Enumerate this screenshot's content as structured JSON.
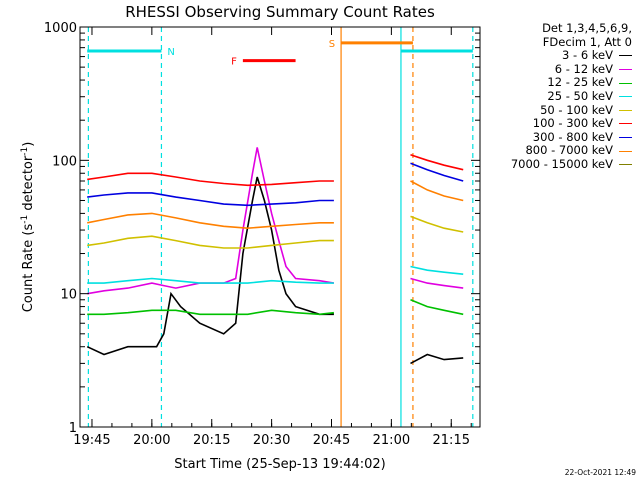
{
  "chart_data": {
    "type": "line",
    "title": "RHESSI Observing Summary Count Rates",
    "xlabel": "Start Time (25-Sep-13 19:44:02)",
    "ylabel_main": "Count Rate (s",
    "ylabel_sup1": "-1",
    "ylabel_mid": " detector",
    "ylabel_sup2": "-1",
    "ylabel_end": ")",
    "yscale": "log",
    "ylim": [
      1,
      1000
    ],
    "xlim_minutes": [
      19.7,
      21.37
    ],
    "y_ticks": [
      {
        "value": 1,
        "label": "1"
      },
      {
        "value": 10,
        "label": "10"
      },
      {
        "value": 100,
        "label": "100"
      },
      {
        "value": 1000,
        "label": "1000"
      }
    ],
    "x_ticks": [
      {
        "value": 19.75,
        "label": "19:45"
      },
      {
        "value": 20.0,
        "label": "20:00"
      },
      {
        "value": 20.25,
        "label": "20:15"
      },
      {
        "value": 20.5,
        "label": "20:30"
      },
      {
        "value": 20.75,
        "label": "20:45"
      },
      {
        "value": 21.0,
        "label": "21:00"
      },
      {
        "value": 21.25,
        "label": "21:15"
      }
    ],
    "legend_header": [
      "Det 1,3,4,5,6,9,",
      "FDecim 1, Att 0"
    ],
    "series": [
      {
        "name": "3 - 6 keV",
        "color": "#000000",
        "points": [
          [
            19.73,
            4
          ],
          [
            19.8,
            3.5
          ],
          [
            19.9,
            4
          ],
          [
            20.02,
            4
          ],
          [
            20.05,
            5
          ],
          [
            20.08,
            10
          ],
          [
            20.12,
            8
          ],
          [
            20.2,
            6
          ],
          [
            20.3,
            5
          ],
          [
            20.35,
            6
          ],
          [
            20.38,
            20
          ],
          [
            20.42,
            50
          ],
          [
            20.44,
            75
          ],
          [
            20.47,
            50
          ],
          [
            20.5,
            30
          ],
          [
            20.53,
            15
          ],
          [
            20.56,
            10
          ],
          [
            20.6,
            8
          ],
          [
            20.7,
            7
          ],
          [
            20.76,
            7
          ]
        ]
      },
      {
        "name": "6 - 12 keV",
        "color": "#e000e0",
        "points": [
          [
            19.73,
            10
          ],
          [
            19.8,
            10.5
          ],
          [
            19.9,
            11
          ],
          [
            20.0,
            12
          ],
          [
            20.05,
            11.5
          ],
          [
            20.1,
            11
          ],
          [
            20.2,
            12
          ],
          [
            20.3,
            12
          ],
          [
            20.35,
            13
          ],
          [
            20.38,
            30
          ],
          [
            20.42,
            80
          ],
          [
            20.44,
            125
          ],
          [
            20.47,
            70
          ],
          [
            20.5,
            40
          ],
          [
            20.53,
            25
          ],
          [
            20.56,
            16
          ],
          [
            20.6,
            13
          ],
          [
            20.7,
            12.5
          ],
          [
            20.76,
            12
          ]
        ]
      },
      {
        "name": "12 - 25 keV",
        "color": "#00c000",
        "points": [
          [
            19.73,
            7
          ],
          [
            19.8,
            7
          ],
          [
            19.9,
            7.2
          ],
          [
            20.0,
            7.5
          ],
          [
            20.1,
            7.5
          ],
          [
            20.2,
            7
          ],
          [
            20.3,
            7
          ],
          [
            20.4,
            7
          ],
          [
            20.5,
            7.5
          ],
          [
            20.6,
            7.2
          ],
          [
            20.7,
            7
          ],
          [
            20.76,
            7.2
          ]
        ]
      },
      {
        "name": "25 - 50 keV",
        "color": "#00e0e0",
        "points": [
          [
            19.73,
            12
          ],
          [
            19.8,
            12
          ],
          [
            19.9,
            12.5
          ],
          [
            20.0,
            13
          ],
          [
            20.1,
            12.5
          ],
          [
            20.2,
            12
          ],
          [
            20.3,
            12
          ],
          [
            20.4,
            12
          ],
          [
            20.5,
            12.5
          ],
          [
            20.6,
            12.2
          ],
          [
            20.7,
            12
          ],
          [
            20.76,
            12
          ]
        ]
      },
      {
        "name": "50 - 100 keV",
        "color": "#d0c000",
        "points": [
          [
            19.73,
            23
          ],
          [
            19.8,
            24
          ],
          [
            19.9,
            26
          ],
          [
            20.0,
            27
          ],
          [
            20.1,
            25
          ],
          [
            20.2,
            23
          ],
          [
            20.3,
            22
          ],
          [
            20.4,
            22
          ],
          [
            20.5,
            23
          ],
          [
            20.6,
            24
          ],
          [
            20.7,
            25
          ],
          [
            20.76,
            25
          ]
        ]
      },
      {
        "name": "100 - 300 keV",
        "color": "#ff0000",
        "points": [
          [
            19.73,
            72
          ],
          [
            19.8,
            75
          ],
          [
            19.9,
            80
          ],
          [
            20.0,
            80
          ],
          [
            20.1,
            75
          ],
          [
            20.2,
            70
          ],
          [
            20.3,
            67
          ],
          [
            20.4,
            65
          ],
          [
            20.5,
            66
          ],
          [
            20.6,
            68
          ],
          [
            20.7,
            70
          ],
          [
            20.76,
            70
          ]
        ]
      },
      {
        "name": "300 - 800 keV",
        "color": "#0000e0",
        "points": [
          [
            19.73,
            53
          ],
          [
            19.8,
            55
          ],
          [
            19.9,
            57
          ],
          [
            20.0,
            57
          ],
          [
            20.1,
            53
          ],
          [
            20.2,
            50
          ],
          [
            20.3,
            47
          ],
          [
            20.4,
            46
          ],
          [
            20.5,
            47
          ],
          [
            20.6,
            48
          ],
          [
            20.7,
            50
          ],
          [
            20.76,
            50
          ]
        ]
      },
      {
        "name": "800 - 7000 keV",
        "color": "#ff8000",
        "points": [
          [
            19.73,
            34
          ],
          [
            19.8,
            36
          ],
          [
            19.9,
            39
          ],
          [
            20.0,
            40
          ],
          [
            20.1,
            37
          ],
          [
            20.2,
            34
          ],
          [
            20.3,
            32
          ],
          [
            20.4,
            31
          ],
          [
            20.5,
            32
          ],
          [
            20.6,
            33
          ],
          [
            20.7,
            34
          ],
          [
            20.76,
            34
          ]
        ]
      },
      {
        "name": "7000 - 15000 keV",
        "color": "#808000",
        "points": []
      }
    ],
    "series_after_gap": [
      {
        "name": "3 - 6 keV",
        "color": "#000000",
        "points": [
          [
            21.08,
            3
          ],
          [
            21.15,
            3.5
          ],
          [
            21.22,
            3.2
          ],
          [
            21.3,
            3.3
          ]
        ]
      },
      {
        "name": "6 - 12 keV",
        "color": "#e000e0",
        "points": [
          [
            21.08,
            13
          ],
          [
            21.15,
            12
          ],
          [
            21.22,
            11.5
          ],
          [
            21.3,
            11
          ]
        ]
      },
      {
        "name": "12 - 25 keV",
        "color": "#00c000",
        "points": [
          [
            21.08,
            9
          ],
          [
            21.15,
            8
          ],
          [
            21.22,
            7.5
          ],
          [
            21.3,
            7
          ]
        ]
      },
      {
        "name": "25 - 50 keV",
        "color": "#00e0e0",
        "points": [
          [
            21.08,
            16
          ],
          [
            21.15,
            15
          ],
          [
            21.22,
            14.5
          ],
          [
            21.3,
            14
          ]
        ]
      },
      {
        "name": "50 - 100 keV",
        "color": "#d0c000",
        "points": [
          [
            21.08,
            38
          ],
          [
            21.15,
            34
          ],
          [
            21.22,
            31
          ],
          [
            21.3,
            29
          ]
        ]
      },
      {
        "name": "100 - 300 keV",
        "color": "#ff0000",
        "points": [
          [
            21.08,
            110
          ],
          [
            21.15,
            100
          ],
          [
            21.22,
            92
          ],
          [
            21.3,
            85
          ]
        ]
      },
      {
        "name": "300 - 800 keV",
        "color": "#0000e0",
        "points": [
          [
            21.08,
            95
          ],
          [
            21.15,
            85
          ],
          [
            21.22,
            77
          ],
          [
            21.3,
            70
          ]
        ]
      },
      {
        "name": "800 - 7000 keV",
        "color": "#ff8000",
        "points": [
          [
            21.08,
            70
          ],
          [
            21.15,
            60
          ],
          [
            21.22,
            54
          ],
          [
            21.3,
            50
          ]
        ]
      }
    ],
    "flag_bars": [
      {
        "label": "N",
        "color": "#00e0e0",
        "x0": 19.73,
        "x1": 20.04,
        "y": 660
      },
      {
        "label": "",
        "color": "#00e0e0",
        "x0": 21.04,
        "x1": 21.34,
        "y": 660
      },
      {
        "label": "F",
        "color": "#ff0000",
        "x0": 20.38,
        "x1": 20.6,
        "y": 560
      },
      {
        "label": "S",
        "color": "#ff8000",
        "x0": 20.79,
        "x1": 21.09,
        "y": 760
      }
    ],
    "vertical_lines": [
      {
        "x": 19.735,
        "color": "#00e0e0",
        "style": "dashed"
      },
      {
        "x": 20.04,
        "color": "#00e0e0",
        "style": "dashed"
      },
      {
        "x": 20.79,
        "color": "#ff8000",
        "style": "solid"
      },
      {
        "x": 21.04,
        "color": "#00e0e0",
        "style": "solid"
      },
      {
        "x": 21.09,
        "color": "#ff8000",
        "style": "dashed"
      },
      {
        "x": 21.34,
        "color": "#00e0e0",
        "style": "dashed"
      }
    ]
  },
  "footer": {
    "timestamp": "22-Oct-2021 12:49"
  }
}
